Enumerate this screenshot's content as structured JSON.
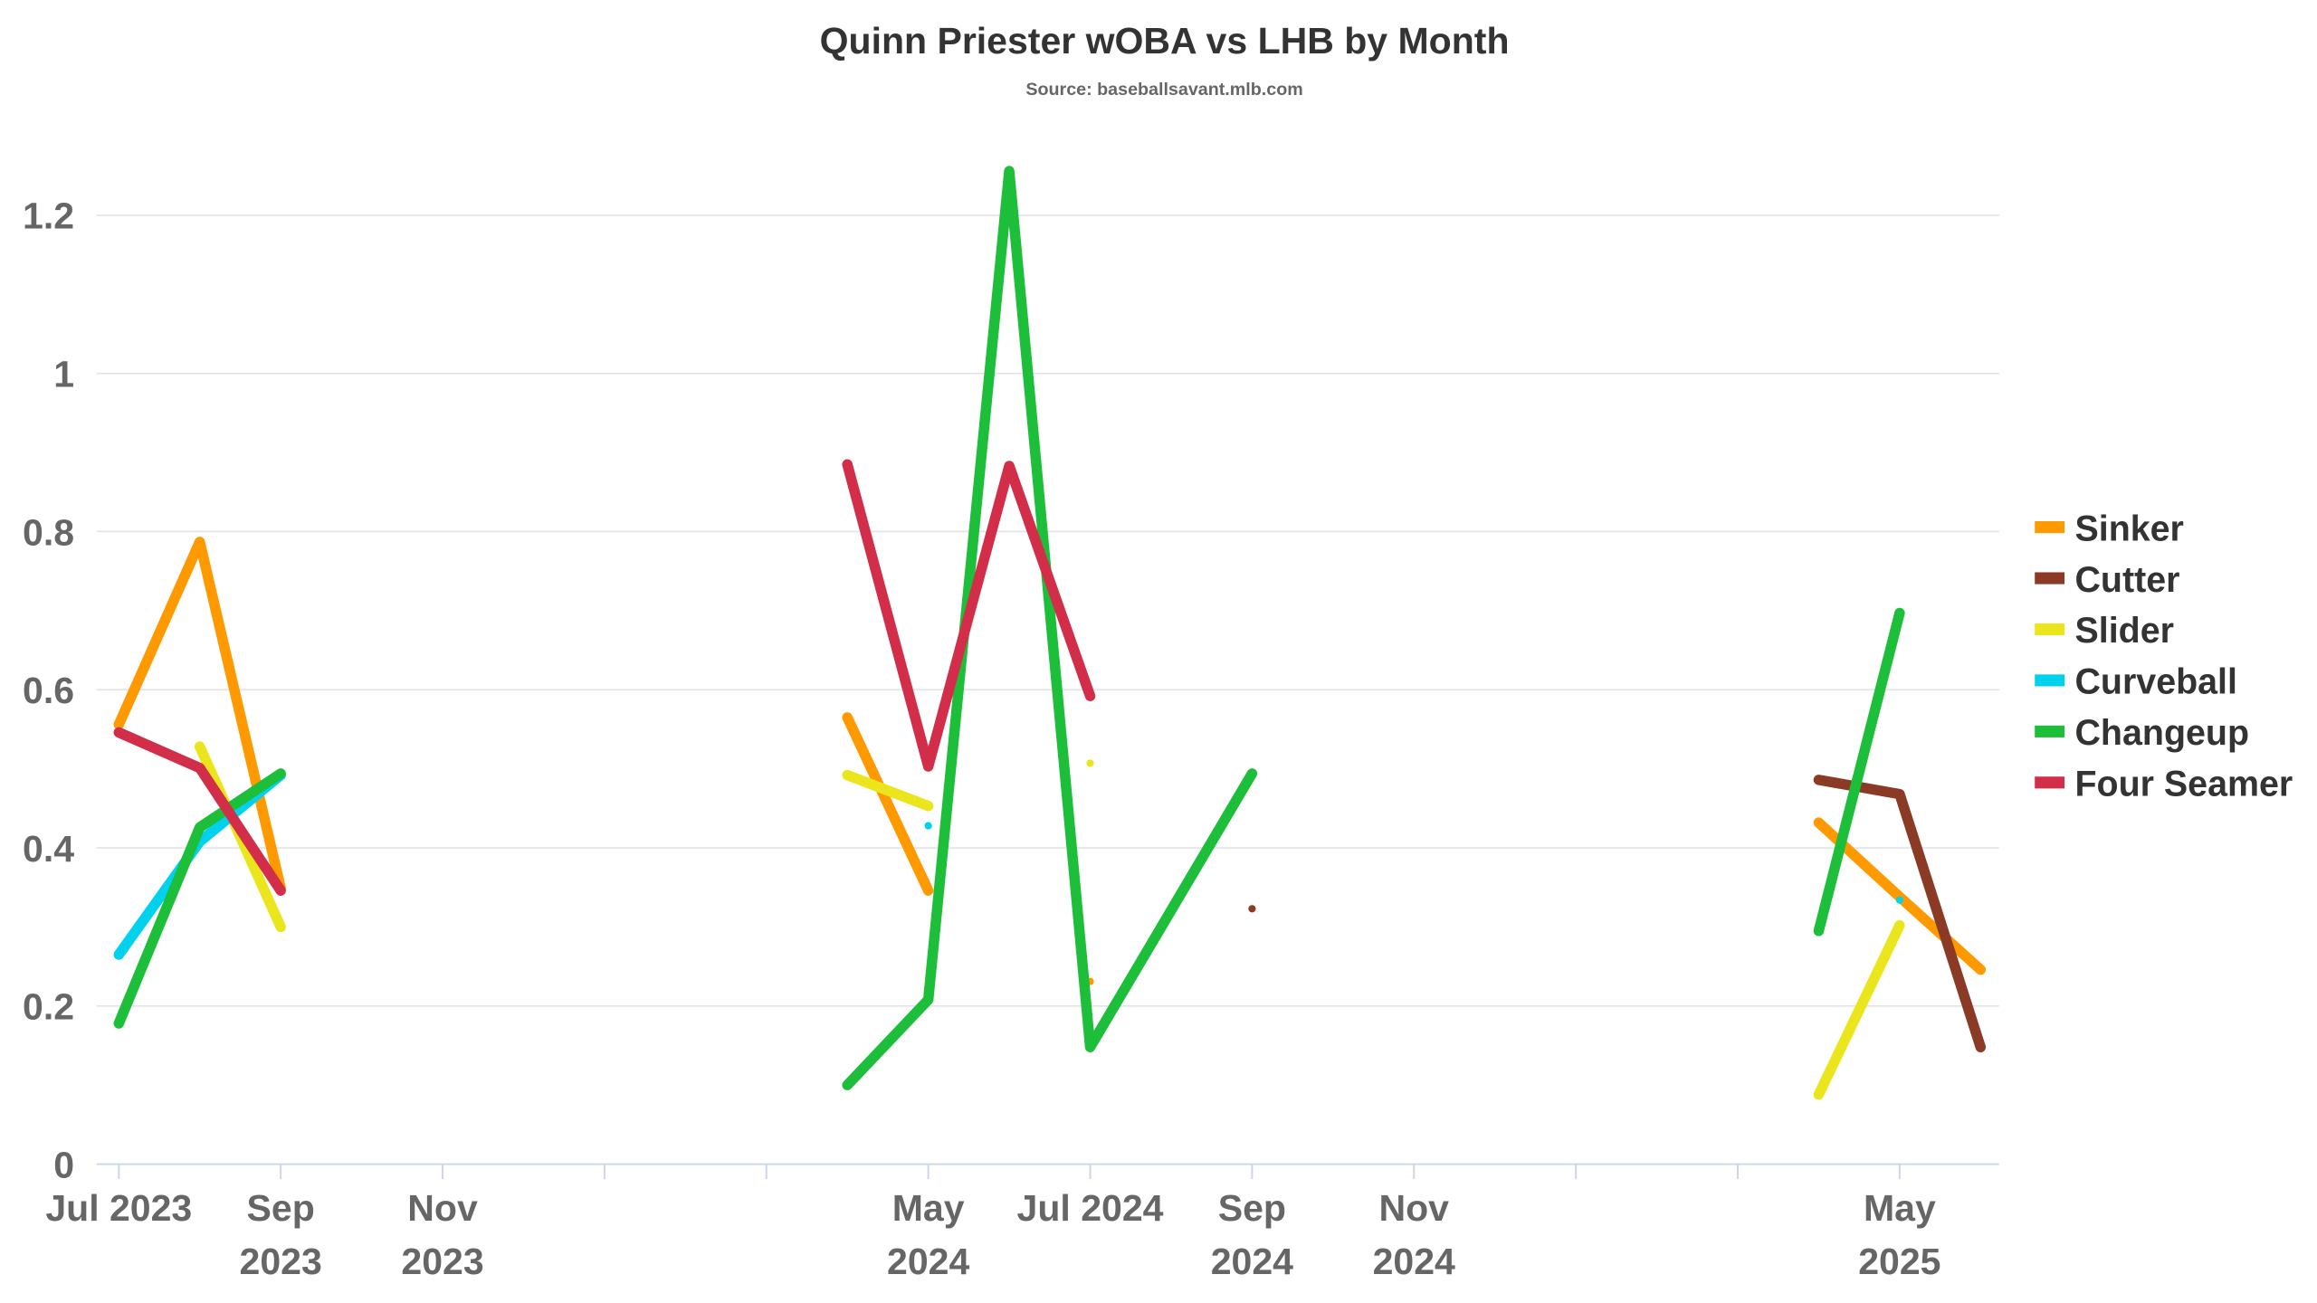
{
  "chart_data": {
    "type": "line",
    "title": "Quinn Priester wOBA vs LHB by Month",
    "subtitle": "Source: baseballsavant.mlb.com",
    "xlabel": "",
    "ylabel": "",
    "ylim": [
      0,
      1.2
    ],
    "yticks": [
      "0",
      "0.2",
      "0.4",
      "0.6",
      "0.8",
      "1",
      "1.2"
    ],
    "ytick_values": [
      0,
      0.2,
      0.4,
      0.6,
      0.8,
      1.0,
      1.2
    ],
    "grid": true,
    "legend_position": "right",
    "x_months": [
      "Jul 2023",
      "Aug 2023",
      "Sep 2023",
      "Oct 2023",
      "Nov 2023",
      "Dec 2023",
      "Jan 2024",
      "Feb 2024",
      "Mar 2024",
      "Apr 2024",
      "May 2024",
      "Jun 2024",
      "Jul 2024",
      "Aug 2024",
      "Sep 2024",
      "Oct 2024",
      "Nov 2024",
      "Dec 2024",
      "Jan 2025",
      "Feb 2025",
      "Mar 2025",
      "Apr 2025",
      "May 2025",
      "Jun 2025"
    ],
    "xticks": [
      {
        "month_index": 0,
        "lines": [
          "Jul 2023"
        ]
      },
      {
        "month_index": 2,
        "lines": [
          "Sep",
          "2023"
        ]
      },
      {
        "month_index": 4,
        "lines": [
          "Nov",
          "2023"
        ]
      },
      {
        "month_index": 6,
        "lines": []
      },
      {
        "month_index": 8,
        "lines": []
      },
      {
        "month_index": 10,
        "lines": [
          "May",
          "2024"
        ]
      },
      {
        "month_index": 12,
        "lines": [
          "Jul 2024"
        ]
      },
      {
        "month_index": 14,
        "lines": [
          "Sep",
          "2024"
        ]
      },
      {
        "month_index": 16,
        "lines": [
          "Nov",
          "2024"
        ]
      },
      {
        "month_index": 18,
        "lines": []
      },
      {
        "month_index": 20,
        "lines": []
      },
      {
        "month_index": 22,
        "lines": [
          "May",
          "2025"
        ]
      }
    ],
    "series": [
      {
        "name": "Sinker",
        "color": "#ff9900",
        "points": [
          [
            0,
            0.556
          ],
          [
            1,
            0.787
          ],
          [
            2,
            0.349
          ],
          [
            9,
            0.565
          ],
          [
            10,
            0.346
          ],
          [
            12,
            0.231
          ],
          [
            21,
            0.432
          ],
          [
            22,
            0.338
          ],
          [
            23,
            0.246
          ]
        ]
      },
      {
        "name": "Cutter",
        "color": "#8b3a26",
        "points": [
          [
            14,
            0.323
          ],
          [
            21,
            0.486
          ],
          [
            22,
            0.468
          ],
          [
            23,
            0.148
          ]
        ]
      },
      {
        "name": "Slider",
        "color": "#eae51c",
        "points": [
          [
            1,
            0.528
          ],
          [
            2,
            0.3
          ],
          [
            9,
            0.492
          ],
          [
            10,
            0.453
          ],
          [
            12,
            0.507
          ],
          [
            21,
            0.088
          ],
          [
            22,
            0.302
          ]
        ]
      },
      {
        "name": "Curveball",
        "color": "#00d1ed",
        "points": [
          [
            0,
            0.265
          ],
          [
            1,
            0.408
          ],
          [
            2,
            0.492
          ],
          [
            10,
            0.428
          ],
          [
            22,
            0.334
          ]
        ]
      },
      {
        "name": "Changeup",
        "color": "#1dbe3a",
        "points": [
          [
            0,
            0.178
          ],
          [
            1,
            0.426
          ],
          [
            2,
            0.494
          ],
          [
            9,
            0.1
          ],
          [
            10,
            0.208
          ],
          [
            11,
            1.256
          ],
          [
            12,
            0.148
          ],
          [
            13,
            0.321
          ],
          [
            14,
            0.494
          ],
          [
            21,
            0.295
          ],
          [
            22,
            0.697
          ]
        ]
      },
      {
        "name": "Four Seamer",
        "color": "#d22d49",
        "points": [
          [
            0,
            0.546
          ],
          [
            1,
            0.501
          ],
          [
            2,
            0.346
          ],
          [
            9,
            0.885
          ],
          [
            10,
            0.503
          ],
          [
            11,
            0.883
          ],
          [
            12,
            0.592
          ]
        ]
      }
    ]
  }
}
